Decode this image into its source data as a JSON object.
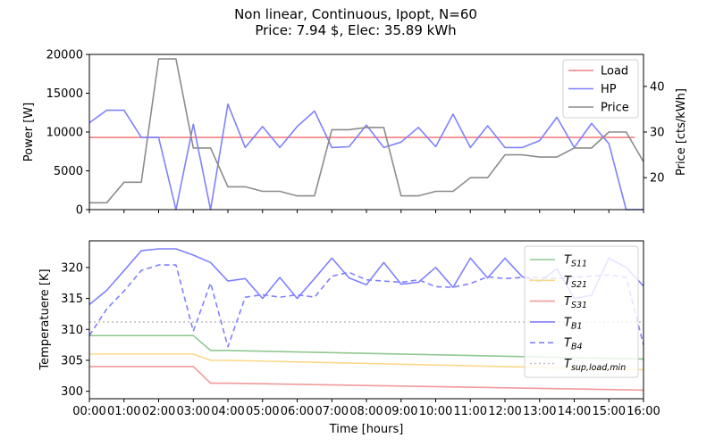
{
  "figure": {
    "title_line1": "Non linear, Continuous, Ipopt, N=60",
    "title_line2": "Price: 7.94 $, Elec: 35.89 kWh"
  },
  "chart_data": [
    {
      "type": "line",
      "panel": "top",
      "xlabel": "",
      "ylabel": "Power [W]",
      "ylabel_right": "Price [cts/kWh]",
      "xlim": [
        0,
        16
      ],
      "ylim": [
        0,
        20000
      ],
      "ylim_right": [
        13,
        47
      ],
      "yticks": [
        0,
        5000,
        10000,
        15000,
        20000
      ],
      "yticks_right": [
        20,
        30,
        40
      ],
      "legend_position": "top-right",
      "grid": false,
      "series": [
        {
          "name": "Load",
          "color": "#f08080",
          "axis": "left",
          "x": [
            0,
            15.75
          ],
          "y": [
            9300,
            9300
          ]
        },
        {
          "name": "HP",
          "color": "#8080ff",
          "axis": "left",
          "x": [
            0,
            0.5,
            1,
            1.5,
            2,
            2.5,
            3,
            3.5,
            4,
            4.5,
            5,
            5.5,
            6,
            6.5,
            7,
            7.5,
            8,
            8.5,
            9,
            9.5,
            10,
            10.5,
            11,
            11.5,
            12,
            12.5,
            13,
            13.5,
            14,
            14.5,
            15,
            15.5,
            16
          ],
          "y": [
            11200,
            12800,
            12800,
            9300,
            9300,
            0,
            11000,
            0,
            13600,
            8000,
            10700,
            8000,
            10700,
            12700,
            8000,
            8100,
            10900,
            8000,
            8700,
            10600,
            8100,
            12300,
            8000,
            10800,
            8000,
            8000,
            8900,
            11900,
            8000,
            11100,
            8500,
            0,
            0
          ]
        },
        {
          "name": "Price",
          "color": "#8c8c8c",
          "axis": "right",
          "x": [
            0,
            0.5,
            0.5,
            1,
            1.5,
            2,
            2.5,
            3,
            3.5,
            4,
            4.5,
            5,
            5.5,
            6,
            6.5,
            7,
            7.5,
            8,
            8.5,
            9,
            9.5,
            10,
            10.5,
            11,
            11.5,
            12,
            12.5,
            13,
            13.5,
            14,
            14.5,
            15,
            15.5,
            16
          ],
          "y": [
            14.5,
            14.5,
            14.5,
            19.0,
            19.0,
            46.0,
            46.0,
            26.5,
            26.5,
            18.0,
            18.0,
            17.0,
            17.0,
            16.0,
            16.0,
            30.5,
            30.5,
            31.0,
            31.0,
            16.0,
            16.0,
            17.0,
            17.0,
            20.0,
            20.0,
            25.0,
            25.0,
            24.5,
            24.5,
            26.5,
            26.5,
            30.0,
            30.0,
            23.5
          ]
        }
      ]
    },
    {
      "type": "line",
      "panel": "bottom",
      "xlabel": "Time [hours]",
      "ylabel": "Temperatuere [K]",
      "xlim": [
        0,
        16
      ],
      "ylim": [
        298.8,
        324.3
      ],
      "yticks": [
        300,
        305,
        310,
        315,
        320
      ],
      "xtick_labels": [
        "00:00",
        "01:00",
        "02:00",
        "03:00",
        "04:00",
        "05:00",
        "06:00",
        "07:00",
        "08:00",
        "09:00",
        "10:00",
        "11:00",
        "12:00",
        "13:00",
        "14:00",
        "15:00",
        "16:00"
      ],
      "legend_position": "right",
      "grid": false,
      "series": [
        {
          "name": "T",
          "sub": "S11",
          "color": "#90c890",
          "dash": "",
          "x": [
            0,
            3,
            3.5,
            4,
            16
          ],
          "y": [
            309,
            309,
            306.6,
            306.6,
            305.2
          ]
        },
        {
          "name": "T",
          "sub": "S21",
          "color": "#fbd88a",
          "dash": "",
          "x": [
            0,
            3,
            3.5,
            4,
            16
          ],
          "y": [
            306,
            306,
            305,
            305,
            303.5
          ]
        },
        {
          "name": "T",
          "sub": "S31",
          "color": "#f09a9a",
          "dash": "",
          "x": [
            0,
            3,
            3.5,
            4,
            16
          ],
          "y": [
            304,
            304,
            301.3,
            301.3,
            300.2
          ]
        },
        {
          "name": "T",
          "sub": "B1",
          "color": "#8080ff",
          "dash": "",
          "x": [
            0,
            0.5,
            1,
            1.5,
            2,
            2.5,
            3,
            3.5,
            4,
            4.5,
            5,
            5.5,
            6,
            6.5,
            7,
            7.5,
            8,
            8.5,
            9,
            9.5,
            10,
            10.5,
            11,
            11.5,
            12,
            12.5,
            13,
            13.5,
            14,
            14.5,
            15,
            15.5,
            16
          ],
          "y": [
            314,
            316.3,
            319.5,
            322.7,
            323,
            323,
            322,
            320.8,
            317.8,
            318.2,
            315,
            318.4,
            315,
            318.2,
            321.5,
            318.3,
            317.2,
            320.8,
            317.3,
            317.6,
            320,
            316.8,
            321.5,
            318.3,
            321.5,
            318.5,
            317.7,
            319.8,
            315,
            315.5,
            321.5,
            320,
            317
          ]
        },
        {
          "name": "T",
          "sub": "B4",
          "color": "#8080ff",
          "dash": "6,4",
          "x": [
            0,
            0.5,
            1,
            1.5,
            2,
            2.5,
            3,
            3.5,
            4,
            4.5,
            5,
            5.5,
            6,
            6.5,
            7,
            7.5,
            8,
            8.5,
            9,
            9.5,
            10,
            10.5,
            11,
            11.5,
            12,
            12.5,
            13,
            13.5,
            14,
            14.5,
            15,
            15.5,
            16
          ],
          "y": [
            309,
            313.3,
            316.2,
            319.5,
            320.4,
            320.4,
            309.7,
            317.5,
            307.2,
            315.2,
            315.6,
            315.2,
            315.6,
            315.2,
            318.6,
            319.2,
            318,
            317.8,
            317.6,
            318,
            316.9,
            316.8,
            317.4,
            318.5,
            318.2,
            318.4,
            318.4,
            318.2,
            318.4,
            318.6,
            318.8,
            318.4,
            307.5
          ]
        },
        {
          "name": "T",
          "sub": "sup,load,min",
          "color": "#c0c0c0",
          "dash": "2,3",
          "x": [
            0,
            16
          ],
          "y": [
            311.2,
            311.2
          ]
        }
      ]
    }
  ]
}
